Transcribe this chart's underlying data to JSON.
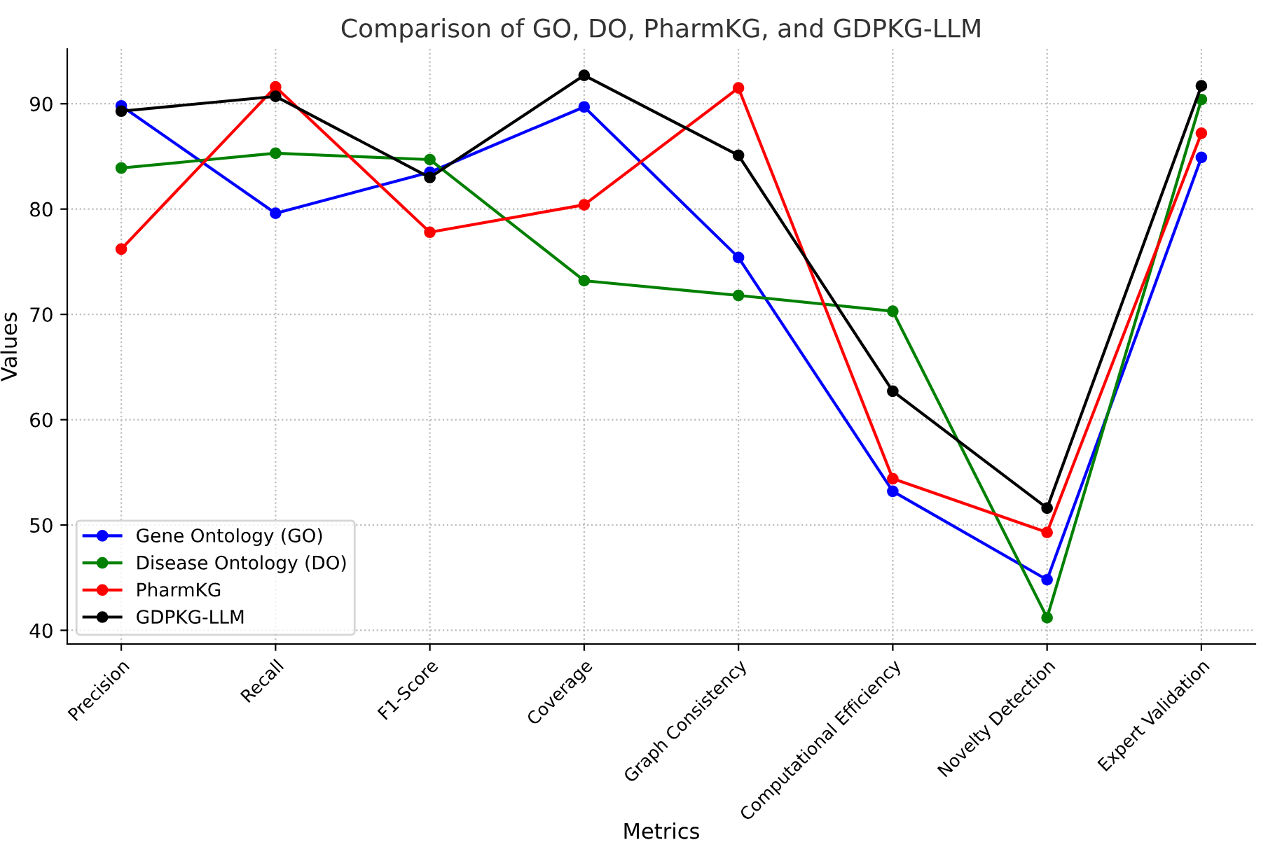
{
  "chart_data": {
    "type": "line",
    "title": "Comparison of GO, DO, PharmKG, and GDPKG-LLM",
    "xlabel": "Metrics",
    "ylabel": "Values",
    "categories": [
      "Precision",
      "Recall",
      "F1-Score",
      "Coverage",
      "Graph Consistency",
      "Computational Efficiency",
      "Novelty Detection",
      "Expert Validation"
    ],
    "series": [
      {
        "name": "Gene Ontology (GO)",
        "color": "#0000ff",
        "values": [
          89.8,
          79.6,
          83.5,
          89.7,
          75.4,
          53.2,
          44.8,
          84.9
        ]
      },
      {
        "name": "Disease Ontology (DO)",
        "color": "#008000",
        "values": [
          83.9,
          85.3,
          84.7,
          73.2,
          71.8,
          70.3,
          41.2,
          90.4
        ]
      },
      {
        "name": "PharmKG",
        "color": "#ff0000",
        "values": [
          76.2,
          91.6,
          77.8,
          80.4,
          91.5,
          54.4,
          49.3,
          87.2
        ]
      },
      {
        "name": "GDPKG-LLM",
        "color": "#000000",
        "values": [
          89.3,
          90.7,
          83.0,
          92.7,
          85.1,
          62.7,
          51.6,
          91.7
        ]
      }
    ],
    "ylim": [
      38.7,
      95.2
    ],
    "yticks": [
      40,
      50,
      60,
      70,
      80,
      90
    ],
    "grid": true,
    "legend": "bottom left",
    "marker": "circle",
    "line_style": "solid"
  }
}
